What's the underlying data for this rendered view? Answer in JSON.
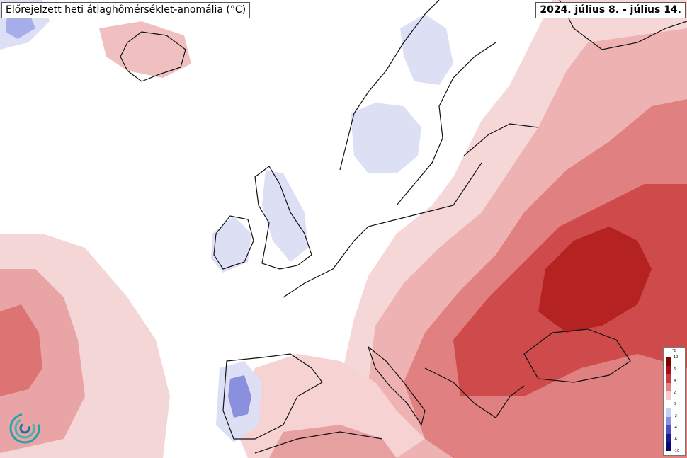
{
  "header": {
    "title": "Előrejelzett heti átlaghőmérséklet-anomália (°C)",
    "period": "2024. július 8. - július 14."
  },
  "legend": {
    "unit": "°C",
    "ticks": [
      "10",
      "6",
      "4",
      "2",
      "0",
      "-2",
      "-4",
      "-6",
      "-10"
    ],
    "colors": [
      "#7f0000",
      "#a50f15",
      "#cb3a3a",
      "#e88080",
      "#f6c8c8",
      "#ffffff",
      "#c8cef0",
      "#8a90dd",
      "#4a4fc0",
      "#1f1a8c",
      "#080870"
    ]
  },
  "palette": {
    "land_outline": "#111111",
    "warm_light": "#f6d7d7",
    "warm_mid": "#e9a3a3",
    "warm_strong": "#d96060",
    "warm_deep": "#c53434",
    "warm_max": "#a81a1a",
    "cool_light": "#dde0f5",
    "cool_mid": "#a7acea",
    "cool_strong": "#6b6fd6"
  },
  "logo": {
    "name": "organization-logo"
  }
}
